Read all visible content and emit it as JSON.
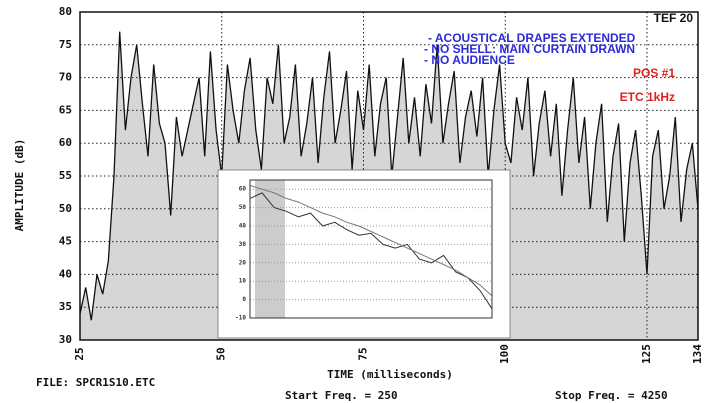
{
  "chart_data": [
    {
      "type": "line",
      "title": "TEF 20",
      "annotations": [
        {
          "text": "- ACOUSTICAL DRAPES EXTENDED",
          "color": "#2a2ad8"
        },
        {
          "text": "- NO SHELL: MAIN CURTAIN DRAWN",
          "color": "#2a2ad8"
        },
        {
          "text": "- NO AUDIENCE",
          "color": "#2a2ad8"
        },
        {
          "text": "POS #1",
          "color": "#e0201c"
        },
        {
          "text": "ETC  1kHz",
          "color": "#e0201c"
        }
      ],
      "y_label": "AMPLITUDE (dB)",
      "x_label": "TIME (milliseconds)",
      "file": "FILE: SPCR1S10.ETC",
      "start_freq": "Start Freq. =    250",
      "stop_freq": "Stop Freq. =   4250",
      "xlim": [
        25,
        134
      ],
      "xticks": [
        25,
        50,
        75,
        100,
        125,
        134
      ],
      "ylim": [
        30,
        80
      ],
      "yticks": [
        30,
        35,
        40,
        45,
        50,
        55,
        60,
        65,
        70,
        75,
        80
      ],
      "grid": true,
      "fill": "#d6d6d6",
      "color": "#111111",
      "x": [
        25,
        26,
        27,
        28,
        29,
        30,
        31,
        32,
        33,
        34,
        35,
        36,
        37,
        38,
        39,
        40,
        41,
        42,
        43,
        44,
        45,
        46,
        47,
        48,
        49,
        50,
        51,
        52,
        53,
        54,
        55,
        56,
        57,
        58,
        59,
        60,
        61,
        62,
        63,
        64,
        65,
        66,
        67,
        68,
        69,
        70,
        71,
        72,
        73,
        74,
        75,
        76,
        77,
        78,
        79,
        80,
        81,
        82,
        83,
        84,
        85,
        86,
        87,
        88,
        89,
        90,
        91,
        92,
        93,
        94,
        95,
        96,
        97,
        98,
        99,
        100,
        101,
        102,
        103,
        104,
        105,
        106,
        107,
        108,
        109,
        110,
        111,
        112,
        113,
        114,
        115,
        116,
        117,
        118,
        119,
        120,
        121,
        122,
        123,
        124,
        125,
        126,
        127,
        128,
        129,
        130,
        131,
        132,
        133,
        134
      ],
      "values": [
        34,
        38,
        33,
        40,
        37,
        42,
        55,
        77,
        62,
        70,
        75,
        66,
        58,
        72,
        63,
        60,
        49,
        64,
        58,
        62,
        66,
        70,
        58,
        74,
        62,
        55,
        72,
        65,
        60,
        68,
        73,
        62,
        56,
        70,
        66,
        75,
        60,
        64,
        72,
        58,
        63,
        70,
        57,
        67,
        74,
        60,
        65,
        71,
        56,
        68,
        62,
        72,
        58,
        66,
        70,
        55,
        64,
        73,
        60,
        67,
        58,
        69,
        63,
        75,
        60,
        66,
        71,
        57,
        64,
        68,
        61,
        70,
        55,
        65,
        72,
        60,
        57,
        67,
        62,
        70,
        55,
        63,
        68,
        58,
        66,
        52,
        62,
        70,
        57,
        64,
        50,
        60,
        66,
        48,
        58,
        63,
        45,
        57,
        62,
        52,
        40,
        58,
        62,
        50,
        55,
        64,
        48,
        56,
        60,
        50
      ]
    },
    {
      "type": "line",
      "xlim": [
        0,
        200
      ],
      "ylim": [
        -10,
        65
      ],
      "yticks": [
        -10,
        0,
        10,
        20,
        30,
        40,
        50,
        60
      ],
      "x": [
        0,
        10,
        20,
        30,
        40,
        50,
        60,
        70,
        80,
        90,
        100,
        110,
        120,
        130,
        140,
        150,
        160,
        170,
        180,
        190,
        200
      ],
      "series": [
        {
          "color": "#333333",
          "values": [
            55,
            58,
            50,
            48,
            45,
            47,
            40,
            42,
            38,
            35,
            36,
            30,
            28,
            30,
            22,
            20,
            24,
            15,
            12,
            5,
            -5
          ]
        },
        {
          "color": "#777777",
          "values": [
            62,
            60,
            58,
            55,
            53,
            50,
            47,
            45,
            42,
            40,
            37,
            34,
            31,
            28,
            25,
            22,
            19,
            16,
            12,
            8,
            2
          ]
        }
      ]
    }
  ]
}
